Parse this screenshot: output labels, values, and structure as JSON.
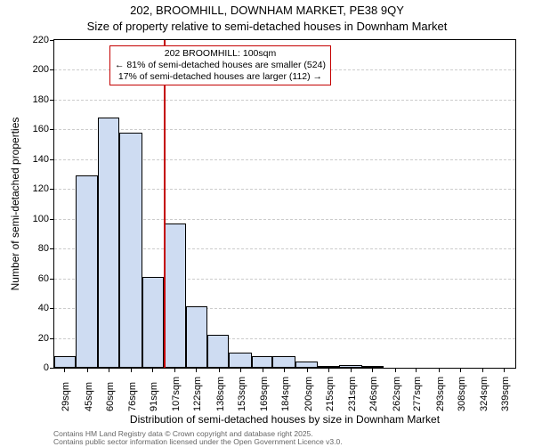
{
  "chart": {
    "type": "histogram",
    "title_line1": "202, BROOMHILL, DOWNHAM MARKET, PE38 9QY",
    "title_line2": "Size of property relative to semi-detached houses in Downham Market",
    "xlabel": "Distribution of semi-detached houses by size in Downham Market",
    "ylabel": "Number of semi-detached properties",
    "background_color": "#ffffff",
    "plot_border_color": "#000000",
    "bar_fill_color": "#cedcf2",
    "bar_border_color": "#000000",
    "grid_color": "#cccccc",
    "marker_color": "#c40000",
    "marker_x_value": 100,
    "annotation_border_color": "#c40000",
    "annotation_bg_color": "#ffffff",
    "annotation_lines": [
      "202 BROOMHILL: 100sqm",
      "← 81% of semi-detached houses are smaller (524)",
      "17% of semi-detached houses are larger (112) →"
    ],
    "ylim": [
      0,
      220
    ],
    "ytick_step": 20,
    "yticks": [
      0,
      20,
      40,
      60,
      80,
      100,
      120,
      140,
      160,
      180,
      200,
      220
    ],
    "x_range": [
      22,
      347
    ],
    "bars": [
      {
        "x0": 22,
        "x1": 37,
        "h": 8
      },
      {
        "x0": 37,
        "x1": 53,
        "h": 129
      },
      {
        "x0": 53,
        "x1": 68,
        "h": 168
      },
      {
        "x0": 68,
        "x1": 84,
        "h": 158
      },
      {
        "x0": 84,
        "x1": 99,
        "h": 61
      },
      {
        "x0": 99,
        "x1": 115,
        "h": 97
      },
      {
        "x0": 115,
        "x1": 130,
        "h": 41
      },
      {
        "x0": 130,
        "x1": 145,
        "h": 22
      },
      {
        "x0": 145,
        "x1": 161,
        "h": 10
      },
      {
        "x0": 161,
        "x1": 176,
        "h": 8
      },
      {
        "x0": 176,
        "x1": 192,
        "h": 8
      },
      {
        "x0": 192,
        "x1": 208,
        "h": 4
      },
      {
        "x0": 208,
        "x1": 223,
        "h": 1
      },
      {
        "x0": 223,
        "x1": 239,
        "h": 2
      },
      {
        "x0": 239,
        "x1": 254,
        "h": 1
      }
    ],
    "xticks": [
      {
        "v": 29,
        "label": "29sqm"
      },
      {
        "v": 45,
        "label": "45sqm"
      },
      {
        "v": 60,
        "label": "60sqm"
      },
      {
        "v": 76,
        "label": "76sqm"
      },
      {
        "v": 91,
        "label": "91sqm"
      },
      {
        "v": 107,
        "label": "107sqm"
      },
      {
        "v": 122,
        "label": "122sqm"
      },
      {
        "v": 138,
        "label": "138sqm"
      },
      {
        "v": 153,
        "label": "153sqm"
      },
      {
        "v": 169,
        "label": "169sqm"
      },
      {
        "v": 184,
        "label": "184sqm"
      },
      {
        "v": 200,
        "label": "200sqm"
      },
      {
        "v": 215,
        "label": "215sqm"
      },
      {
        "v": 231,
        "label": "231sqm"
      },
      {
        "v": 246,
        "label": "246sqm"
      },
      {
        "v": 262,
        "label": "262sqm"
      },
      {
        "v": 277,
        "label": "277sqm"
      },
      {
        "v": 293,
        "label": "293sqm"
      },
      {
        "v": 308,
        "label": "308sqm"
      },
      {
        "v": 324,
        "label": "324sqm"
      },
      {
        "v": 339,
        "label": "339sqm"
      }
    ],
    "title_fontsize": 13,
    "label_fontsize": 12,
    "tick_fontsize": 11,
    "annotation_fontsize": 10.5,
    "credits_line1": "Contains HM Land Registry data © Crown copyright and database right 2025.",
    "credits_line2": "Contains public sector information licensed under the Open Government Licence v3.0.",
    "credits_color": "#666666"
  }
}
